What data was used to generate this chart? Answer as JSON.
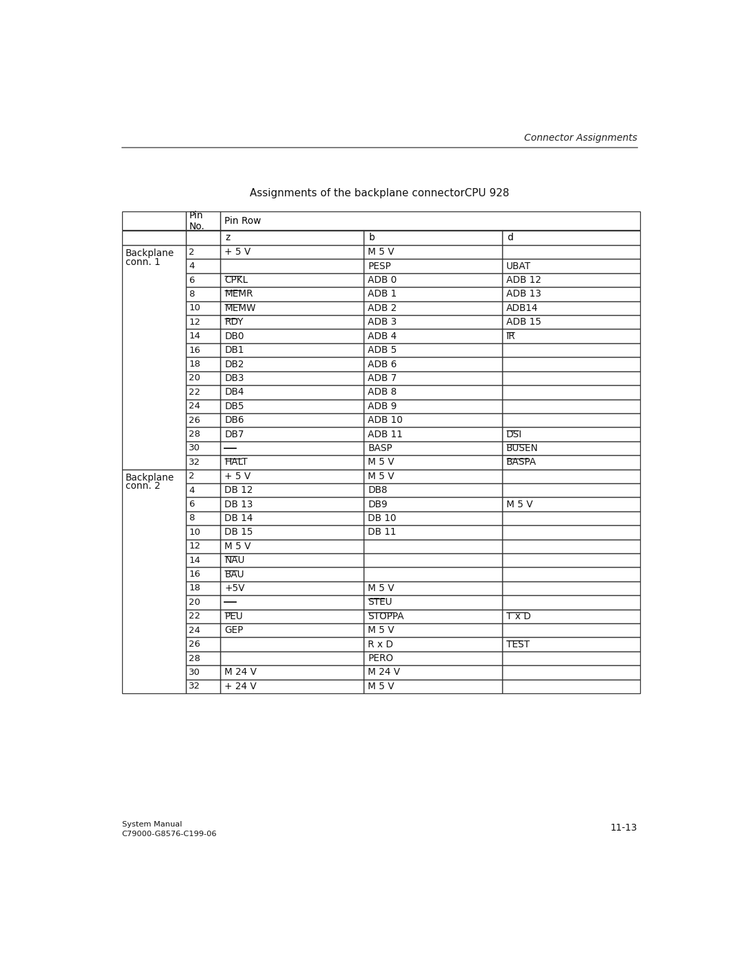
{
  "page_title": "Connector Assignments",
  "table_title": "Assignments of the backplane connectorCPU 928",
  "footer_left": "System Manual\nC79000-G8576-C199-06",
  "footer_right": "11-13",
  "conn1_label_line1": "Backplane",
  "conn1_label_line2": "conn. 1",
  "conn2_label_line1": "Backplane",
  "conn2_label_line2": "conn. 2",
  "conn1_rows": [
    [
      "2",
      "+ 5 V",
      "M 5 V",
      "",
      false,
      false,
      false
    ],
    [
      "4",
      "",
      "PESP",
      "UBAT",
      false,
      false,
      false
    ],
    [
      "6",
      "CPKL",
      "ADB 0",
      "ADB 12",
      true,
      false,
      false
    ],
    [
      "8",
      "MEMR",
      "ADB 1",
      "ADB 13",
      true,
      false,
      false
    ],
    [
      "10",
      "MEMW",
      "ADB 2",
      "ADB14",
      true,
      false,
      false
    ],
    [
      "12",
      "RDY",
      "ADB 3",
      "ADB 15",
      true,
      false,
      false
    ],
    [
      "14",
      "DB0",
      "ADB 4",
      "IR",
      false,
      false,
      true
    ],
    [
      "16",
      "DB1",
      "ADB 5",
      "",
      false,
      false,
      false
    ],
    [
      "18",
      "DB2",
      "ADB 6",
      "",
      false,
      false,
      false
    ],
    [
      "20",
      "DB3",
      "ADB 7",
      "",
      false,
      false,
      false
    ],
    [
      "22",
      "DB4",
      "ADB 8",
      "",
      false,
      false,
      false
    ],
    [
      "24",
      "DB5",
      "ADB 9",
      "",
      false,
      false,
      false
    ],
    [
      "26",
      "DB6",
      "ADB 10",
      "",
      false,
      false,
      false
    ],
    [
      "28",
      "DB7",
      "ADB 11",
      "DSI",
      false,
      false,
      true
    ],
    [
      "30",
      "___",
      "BASP",
      "BUSEN",
      false,
      false,
      true
    ],
    [
      "32",
      "HALT",
      "M 5 V",
      "BASPA",
      true,
      false,
      true
    ]
  ],
  "conn2_rows": [
    [
      "2",
      "+ 5 V",
      "M 5 V",
      "",
      false,
      false,
      false
    ],
    [
      "4",
      "DB 12",
      "DB8",
      "",
      false,
      false,
      false
    ],
    [
      "6",
      "DB 13",
      "DB9",
      "M 5 V",
      false,
      false,
      false
    ],
    [
      "8",
      "DB 14",
      "DB 10",
      "",
      false,
      false,
      false
    ],
    [
      "10",
      "DB 15",
      "DB 11",
      "",
      false,
      false,
      false
    ],
    [
      "12",
      "M 5 V",
      "",
      "",
      false,
      false,
      false
    ],
    [
      "14",
      "NAU",
      "",
      "",
      true,
      false,
      false
    ],
    [
      "16",
      "BAU",
      "",
      "",
      true,
      false,
      false
    ],
    [
      "18",
      "+5V",
      "M 5 V",
      "",
      false,
      false,
      false
    ],
    [
      "20",
      "___",
      "STEU",
      "",
      false,
      true,
      false
    ],
    [
      "22",
      "PEU",
      "STOPPA",
      "T x D",
      true,
      true,
      true
    ],
    [
      "24",
      "GEP",
      "M 5 V",
      "",
      false,
      false,
      false
    ],
    [
      "26",
      "",
      "R x D",
      "TEST",
      false,
      false,
      true
    ],
    [
      "28",
      "",
      "PERO",
      "",
      false,
      false,
      false
    ],
    [
      "30",
      "M 24 V",
      "M 24 V",
      "",
      false,
      false,
      false
    ],
    [
      "32",
      "+ 24 V",
      "M 5 V",
      "",
      false,
      false,
      false
    ]
  ]
}
